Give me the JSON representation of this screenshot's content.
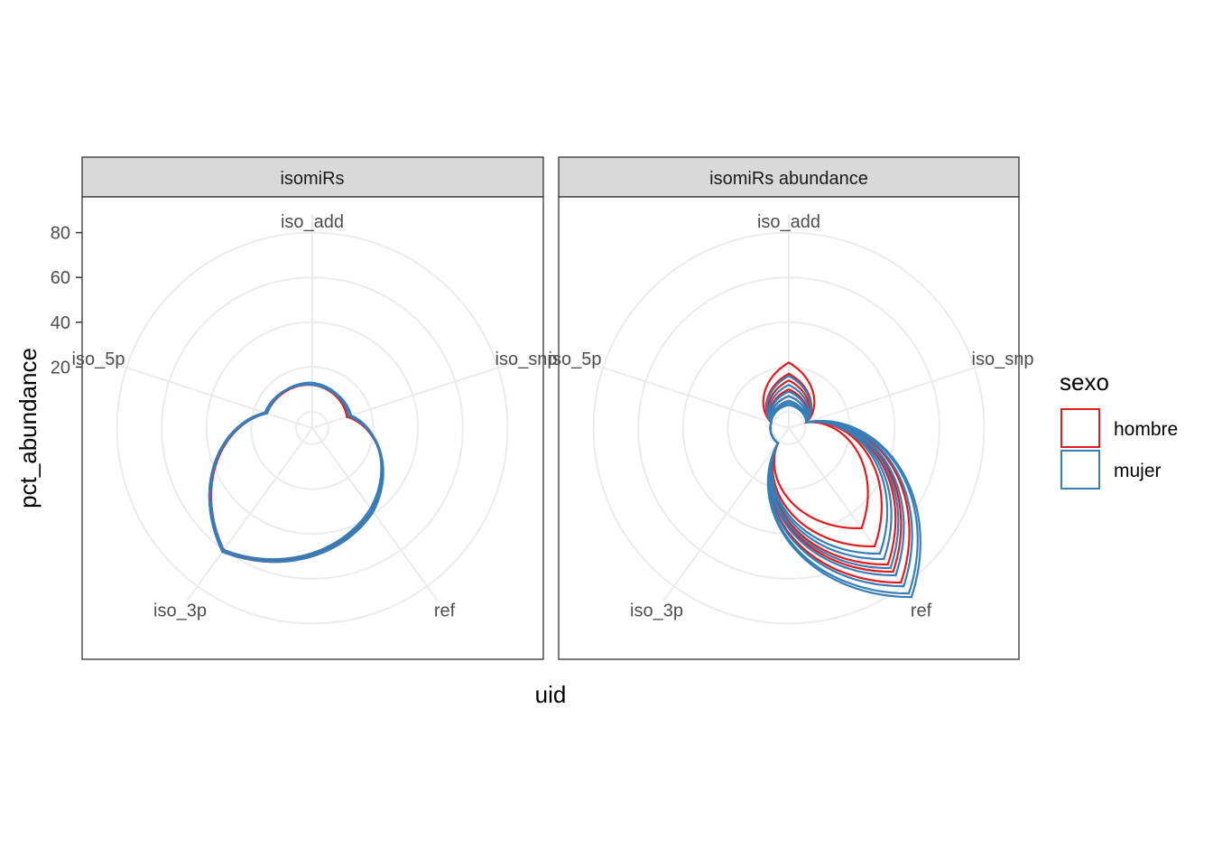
{
  "chart_data": {
    "type": "radar",
    "xlabel": "uid",
    "ylabel": "pct_abundance",
    "categories": [
      "iso_add",
      "iso_snp",
      "ref",
      "iso_3p",
      "iso_5p"
    ],
    "y_ticks": [
      "20",
      "40",
      "60",
      "80"
    ],
    "ylim": [
      0,
      90
    ],
    "grid": true,
    "legend": {
      "title": "sexo",
      "position": "right",
      "entries": [
        {
          "label": "hombre",
          "color": "#E41A1C"
        },
        {
          "label": "mujer",
          "color": "#377EB8"
        }
      ]
    },
    "panels": [
      {
        "title": "isomiRs",
        "series": [
          {
            "group": "hombre",
            "values": [
              12,
              10,
              38,
              60,
              14
            ]
          },
          {
            "group": "hombre",
            "values": [
              12,
              9,
              39,
              61,
              15
            ]
          },
          {
            "group": "mujer",
            "values": [
              12,
              10,
              38,
              61,
              15
            ]
          },
          {
            "group": "mujer",
            "values": [
              13,
              10,
              39,
              61,
              14
            ]
          },
          {
            "group": "mujer",
            "values": [
              12,
              11,
              37,
              60,
              15
            ]
          }
        ]
      },
      {
        "title": "isomiRs abundance",
        "series": [
          {
            "group": "hombre",
            "values": [
              22,
              1,
              48,
              1,
              1
            ]
          },
          {
            "group": "hombre",
            "values": [
              17,
              1,
              58,
              1,
              1
            ]
          },
          {
            "group": "hombre",
            "values": [
              14,
              1,
              68,
              1,
              1
            ]
          },
          {
            "group": "hombre",
            "values": [
              10,
              1,
              72,
              1,
              1
            ]
          },
          {
            "group": "hombre",
            "values": [
              7,
              1,
              78,
              1,
              1
            ]
          },
          {
            "group": "mujer",
            "values": [
              16,
              1,
              62,
              1,
              1
            ]
          },
          {
            "group": "mujer",
            "values": [
              12,
              1,
              65,
              1,
              1
            ]
          },
          {
            "group": "mujer",
            "values": [
              9,
              1,
              70,
              1,
              1
            ]
          },
          {
            "group": "mujer",
            "values": [
              7,
              1,
              74,
              1,
              1
            ]
          },
          {
            "group": "mujer",
            "values": [
              5,
              1,
              80,
              1,
              1
            ]
          },
          {
            "group": "mujer",
            "values": [
              4,
              1,
              84,
              1,
              1
            ]
          },
          {
            "group": "mujer",
            "values": [
              3,
              1,
              86,
              1,
              1
            ]
          }
        ]
      }
    ]
  }
}
